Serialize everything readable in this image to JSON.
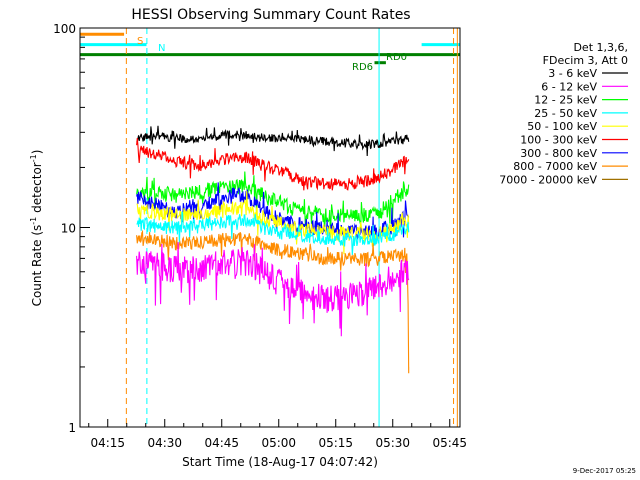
{
  "chart_data": {
    "type": "line",
    "title": "HESSI Observing Summary Count Rates",
    "xlabel": "Start Time (18-Aug-17 04:07:42)",
    "ylabel": "Count Rate (s",
    "ylabel_sup1": "-1",
    "ylabel_mid": " detector",
    "ylabel_sup2": "-1",
    "ylabel_end": ")",
    "yscale": "log",
    "ylim": [
      1,
      100
    ],
    "xlim_min": [
      0,
      100
    ],
    "xticks": [
      {
        "min": 7.3,
        "label": "04:15"
      },
      {
        "min": 22.3,
        "label": "04:30"
      },
      {
        "min": 37.3,
        "label": "04:45"
      },
      {
        "min": 52.3,
        "label": "05:00"
      },
      {
        "min": 67.3,
        "label": "05:15"
      },
      {
        "min": 82.3,
        "label": "05:30"
      },
      {
        "min": 97.3,
        "label": "05:45"
      }
    ],
    "yticks": [
      {
        "value": 1,
        "label": "1"
      },
      {
        "value": 10,
        "label": "10"
      },
      {
        "value": 100,
        "label": "100"
      }
    ],
    "legend": {
      "placement": "right",
      "header1": "Det 1,3,6,",
      "header2": "FDecim 3, Att 0",
      "entries": [
        {
          "label": "3 - 6 keV",
          "color": "#000000"
        },
        {
          "label": "6 - 12 keV",
          "color": "#ff00ff"
        },
        {
          "label": "12 - 25 keV",
          "color": "#00ff00"
        },
        {
          "label": "25 - 50 keV",
          "color": "#00ffff"
        },
        {
          "label": "50 - 100 keV",
          "color": "#ffff00"
        },
        {
          "label": "100 - 300 keV",
          "color": "#ff0000"
        },
        {
          "label": "300 - 800 keV",
          "color": "#0000ff"
        },
        {
          "label": "800 - 7000 keV",
          "color": "#ff8c00"
        },
        {
          "label": "7000 - 20000 keV",
          "color": "#a07000"
        }
      ]
    },
    "time_range_min": [
      14.9,
      86.5
    ],
    "series": [
      {
        "name": "3 - 6 keV",
        "color": "#000000",
        "points": [
          [
            15,
            28
          ],
          [
            20,
            29
          ],
          [
            25,
            28
          ],
          [
            30,
            27.5
          ],
          [
            35,
            28.5
          ],
          [
            40,
            29.5
          ],
          [
            45,
            28.5
          ],
          [
            50,
            28
          ],
          [
            55,
            28
          ],
          [
            60,
            27.5
          ],
          [
            65,
            27
          ],
          [
            70,
            26.5
          ],
          [
            75,
            26
          ],
          [
            80,
            26.5
          ],
          [
            85,
            27.5
          ],
          [
            86.5,
            28
          ]
        ]
      },
      {
        "name": "100 - 300 keV",
        "color": "#ff0000",
        "points": [
          [
            15,
            24.5
          ],
          [
            20,
            23.5
          ],
          [
            25,
            22
          ],
          [
            28,
            21
          ],
          [
            32,
            20.5
          ],
          [
            36,
            21.5
          ],
          [
            40,
            22.5
          ],
          [
            44,
            22.5
          ],
          [
            48,
            20.5
          ],
          [
            52,
            19.5
          ],
          [
            56,
            18
          ],
          [
            60,
            17
          ],
          [
            65,
            16.5
          ],
          [
            70,
            16.5
          ],
          [
            75,
            17
          ],
          [
            79,
            18
          ],
          [
            83,
            20
          ],
          [
            86.5,
            22
          ]
        ]
      },
      {
        "name": "12 - 25 keV",
        "color": "#00ff00",
        "points": [
          [
            15,
            14.5
          ],
          [
            20,
            15
          ],
          [
            25,
            14.5
          ],
          [
            30,
            15
          ],
          [
            35,
            15.5
          ],
          [
            40,
            16
          ],
          [
            44,
            16
          ],
          [
            48,
            14.5
          ],
          [
            52,
            13.5
          ],
          [
            56,
            12.5
          ],
          [
            60,
            12
          ],
          [
            65,
            11.5
          ],
          [
            70,
            11.5
          ],
          [
            75,
            11.5
          ],
          [
            79,
            12
          ],
          [
            83,
            14
          ],
          [
            86.5,
            16
          ]
        ]
      },
      {
        "name": "300 - 800 keV",
        "color": "#0000ff",
        "points": [
          [
            15,
            14
          ],
          [
            20,
            13
          ],
          [
            25,
            12
          ],
          [
            30,
            12.5
          ],
          [
            35,
            13.5
          ],
          [
            40,
            14.5
          ],
          [
            44,
            14.5
          ],
          [
            48,
            12.5
          ],
          [
            52,
            11
          ],
          [
            56,
            10.5
          ],
          [
            60,
            10
          ],
          [
            65,
            9.8
          ],
          [
            70,
            9.6
          ],
          [
            75,
            9.5
          ],
          [
            79,
            9.6
          ],
          [
            83,
            10.5
          ],
          [
            86.5,
            11.5
          ]
        ]
      },
      {
        "name": "50 - 100 keV",
        "color": "#ffff00",
        "points": [
          [
            15,
            12.5
          ],
          [
            20,
            12
          ],
          [
            25,
            11.5
          ],
          [
            30,
            11.5
          ],
          [
            35,
            12
          ],
          [
            40,
            12.5
          ],
          [
            44,
            12.5
          ],
          [
            48,
            11.2
          ],
          [
            52,
            10.5
          ],
          [
            56,
            10
          ],
          [
            60,
            9.7
          ],
          [
            65,
            9.5
          ],
          [
            70,
            9.3
          ],
          [
            75,
            9.2
          ],
          [
            79,
            9.3
          ],
          [
            83,
            10
          ],
          [
            86.5,
            11
          ]
        ]
      },
      {
        "name": "25 - 50 keV",
        "color": "#00ffff",
        "points": [
          [
            15,
            10.5
          ],
          [
            20,
            10.2
          ],
          [
            25,
            10
          ],
          [
            30,
            10.2
          ],
          [
            35,
            10.5
          ],
          [
            40,
            10.8
          ],
          [
            44,
            10.8
          ],
          [
            48,
            10
          ],
          [
            52,
            9.5
          ],
          [
            56,
            9.2
          ],
          [
            60,
            9
          ],
          [
            65,
            8.8
          ],
          [
            70,
            8.7
          ],
          [
            75,
            8.7
          ],
          [
            79,
            8.8
          ],
          [
            83,
            9.3
          ],
          [
            86.5,
            10
          ]
        ]
      },
      {
        "name": "800 - 7000 keV",
        "color": "#ff8c00",
        "points": [
          [
            15,
            9
          ],
          [
            20,
            8.7
          ],
          [
            25,
            8.4
          ],
          [
            30,
            8.4
          ],
          [
            35,
            8.6
          ],
          [
            40,
            8.8
          ],
          [
            44,
            8.8
          ],
          [
            48,
            8.2
          ],
          [
            52,
            7.8
          ],
          [
            56,
            7.5
          ],
          [
            60,
            7.2
          ],
          [
            65,
            7
          ],
          [
            70,
            7
          ],
          [
            75,
            6.9
          ],
          [
            79,
            7
          ],
          [
            83,
            7.2
          ],
          [
            86,
            7.4
          ],
          [
            86.5,
            2
          ]
        ]
      },
      {
        "name": "6 - 12 keV",
        "color": "#ff00ff",
        "points": [
          [
            15,
            6.8
          ],
          [
            20,
            6.5
          ],
          [
            25,
            6.2
          ],
          [
            30,
            6.2
          ],
          [
            35,
            6.5
          ],
          [
            40,
            6.8
          ],
          [
            44,
            6.8
          ],
          [
            48,
            6
          ],
          [
            52,
            5.4
          ],
          [
            56,
            5
          ],
          [
            60,
            4.6
          ],
          [
            65,
            4.5
          ],
          [
            70,
            4.6
          ],
          [
            75,
            4.8
          ],
          [
            79,
            5.2
          ],
          [
            83,
            5.8
          ],
          [
            86.5,
            6.2
          ]
        ]
      }
    ],
    "annotations": {
      "S": {
        "label": "S",
        "color": "#ff8c00"
      },
      "N": {
        "label": "N",
        "color": "#00ffff"
      },
      "RD0": {
        "label": "RD0",
        "color": "#008000"
      },
      "RD6": {
        "label": "RD6",
        "color": "#008000"
      }
    },
    "flag_bars": [
      {
        "from": 0,
        "to": 11.6,
        "y": 93,
        "color": "#ff8c00"
      },
      {
        "from": 0,
        "to": 17.5,
        "y": 82.5,
        "color": "#00ffff"
      },
      {
        "from": 89.9,
        "to": 100,
        "y": 82.5,
        "color": "#00ffff"
      },
      {
        "from": 0,
        "to": 100,
        "y": 73.5,
        "color": "#008000"
      },
      {
        "from": 77.5,
        "to": 80.5,
        "y": 67,
        "color": "#008000"
      }
    ],
    "vlines": [
      {
        "min": 12.2,
        "color": "#ff8c00",
        "style": "dash"
      },
      {
        "min": 17.6,
        "color": "#00ffff",
        "style": "dash"
      },
      {
        "min": 78.7,
        "color": "#00ffff",
        "style": "solid"
      },
      {
        "min": 98.3,
        "color": "#ff8c00",
        "style": "dash"
      },
      {
        "min": 99.3,
        "color": "#ff8c00",
        "style": "solid"
      }
    ],
    "footer_date": "9-Dec-2017 05:25"
  }
}
